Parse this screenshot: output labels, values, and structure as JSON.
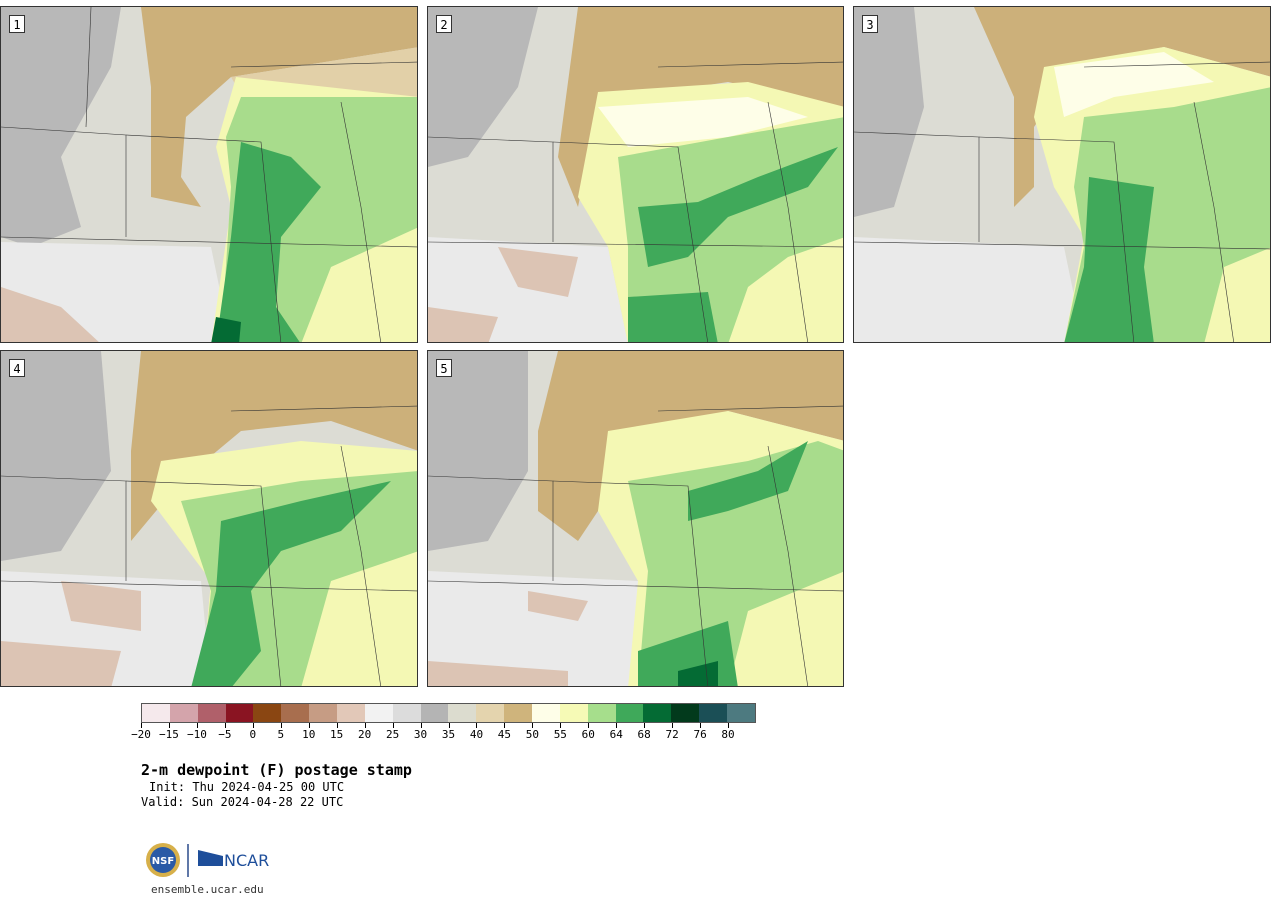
{
  "panels": [
    {
      "number": "1"
    },
    {
      "number": "2"
    },
    {
      "number": "3"
    },
    {
      "number": "4"
    },
    {
      "number": "5"
    }
  ],
  "colorbar": {
    "colors": [
      "#f5e9ec",
      "#d4a4ab",
      "#b0606a",
      "#8a1422",
      "#8a4612",
      "#a86e4e",
      "#c69c84",
      "#e2c8b8",
      "#f2f2f2",
      "#dcdcdc",
      "#b4b4b4",
      "#dcdccf",
      "#e4d4ae",
      "#cfb47c",
      "#fefee8",
      "#f6fab6",
      "#a6de8c",
      "#3fa95a",
      "#046b34",
      "#023a1c",
      "#1b4f56",
      "#4d7a80"
    ],
    "ticks": [
      "−20",
      "−15",
      "−10",
      "−5",
      "0",
      "5",
      "10",
      "15",
      "20",
      "25",
      "30",
      "35",
      "40",
      "45",
      "50",
      "55",
      "60",
      "64",
      "68",
      "72",
      "76",
      "80"
    ]
  },
  "title": "2-m dewpoint (F) postage stamp",
  "init": "Init: Thu 2024-04-25 00 UTC",
  "valid": "Valid: Sun 2024-04-28 22 UTC",
  "logos": {
    "nsf": "NSF",
    "ncar": "NCAR"
  },
  "url": "ensemble.ucar.edu"
}
